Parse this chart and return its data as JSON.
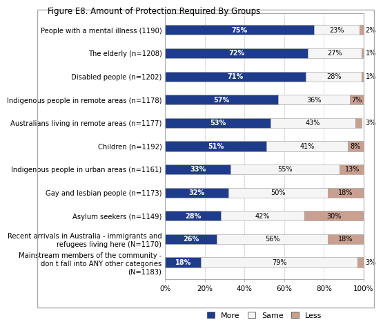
{
  "title": "Figure E8. Amount of Protection Required By Groups",
  "categories": [
    "People with a mental illness (1190)",
    "The elderly (n=1208)",
    "Disabled people (n=1202)",
    "Indigenous people in remote areas (n=1178)",
    "Australians living in remote areas (n=1177)",
    "Children (n=1192)",
    "Indigenous people in urban areas (n=1161)",
    "Gay and lesbian people (n=1173)",
    "Asylum seekers (n=1149)",
    "Recent arrivals in Australia - immigrants and\nrefugees living here (N=1170)",
    "Mainstream members of the community -\ndon t fall into ANY other categories\n(N=1183)"
  ],
  "more": [
    75,
    72,
    71,
    57,
    53,
    51,
    33,
    32,
    28,
    26,
    18
  ],
  "same": [
    23,
    27,
    28,
    36,
    43,
    41,
    55,
    50,
    42,
    56,
    79
  ],
  "less": [
    2,
    1,
    1,
    7,
    3,
    8,
    13,
    18,
    30,
    18,
    3
  ],
  "color_more": "#1F3B8C",
  "color_same": "#F5F5F5",
  "color_less": "#C9A090",
  "color_border": "#999999",
  "bar_height": 0.42,
  "xlabel_ticks": [
    0,
    20,
    40,
    60,
    80,
    100
  ],
  "xlabel_labels": [
    "0%",
    "20%",
    "40%",
    "60%",
    "80%",
    "100%"
  ],
  "background_color": "#FFFFFF",
  "plot_bg_color": "#FFFFFF",
  "title_fontsize": 8.5,
  "label_fontsize": 7.2,
  "tick_fontsize": 7.5,
  "legend_fontsize": 8,
  "bar_label_fontsize": 7.0
}
